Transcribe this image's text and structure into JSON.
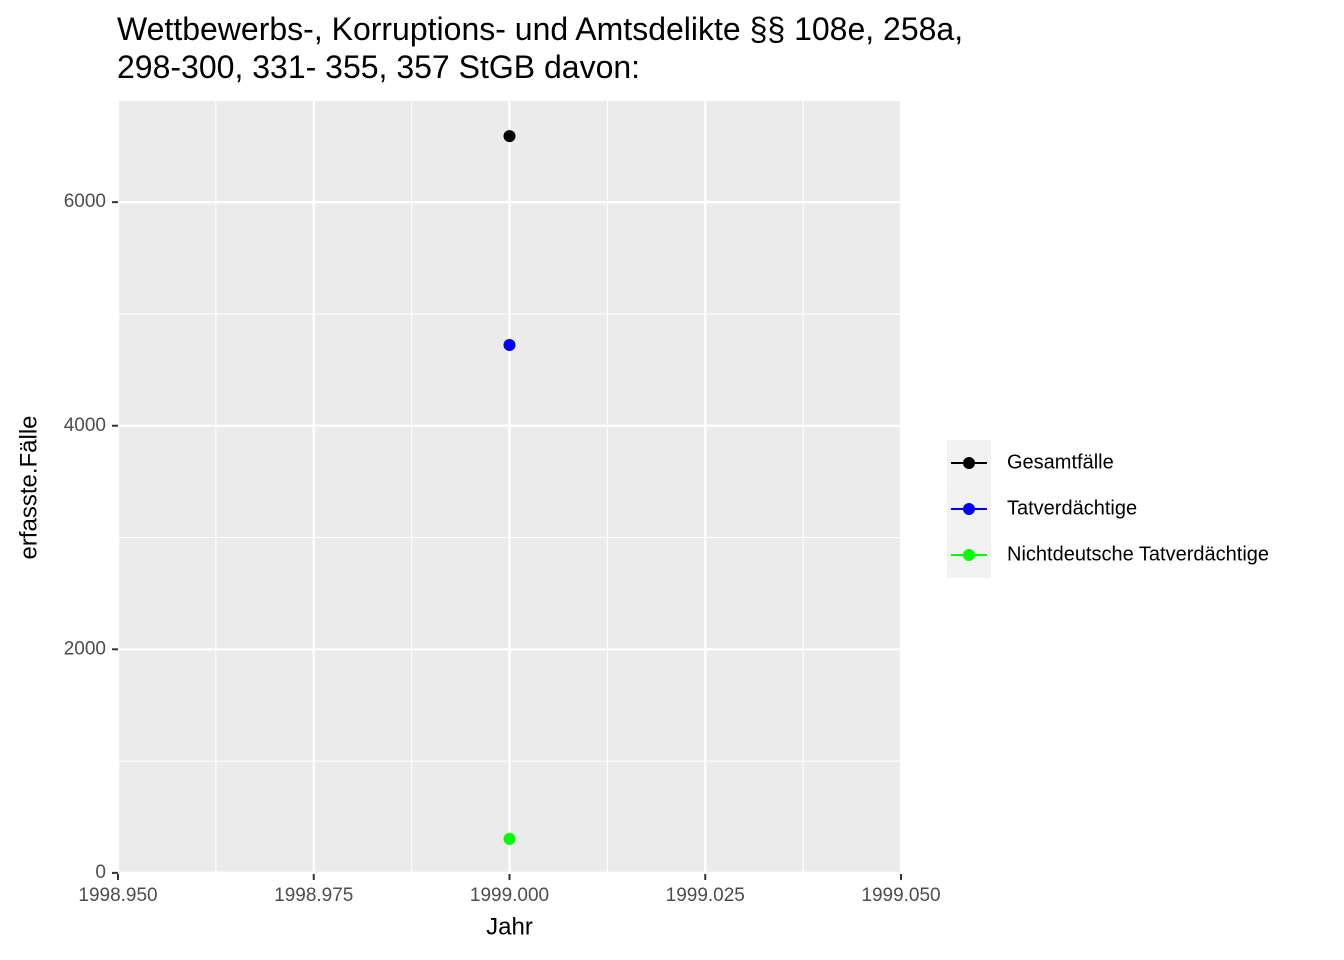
{
  "chart_data": {
    "type": "line",
    "title": "Wettbewerbs-, Korruptions- und Amtsdelikte §§ 108e, 258a,\n298-300, 331- 355, 357 StGB davon:",
    "xlabel": "Jahr",
    "ylabel": "erfasste.Fälle",
    "x": [
      1999
    ],
    "series": [
      {
        "name": "Gesamtfälle",
        "color": "#000000",
        "values": [
          6591
        ]
      },
      {
        "name": "Tatverdächtige",
        "color": "#0000ff",
        "values": [
          4722
        ]
      },
      {
        "name": "Nichtdeutsche Tatverdächtige",
        "color": "#00ff00",
        "values": [
          304
        ]
      }
    ],
    "xlim": [
      1998.95,
      1999.05
    ],
    "xticks": [
      {
        "value": 1998.95,
        "label": "1998.950"
      },
      {
        "value": 1998.975,
        "label": "1998.975"
      },
      {
        "value": 1999,
        "label": "1999.000"
      },
      {
        "value": 1999.025,
        "label": "1999.025"
      },
      {
        "value": 1999.05,
        "label": "1999.050"
      }
    ],
    "ylim": [
      -10,
      6905
    ],
    "yticks": [
      0,
      2000,
      4000,
      6000
    ],
    "grid": true,
    "legend": "right"
  }
}
